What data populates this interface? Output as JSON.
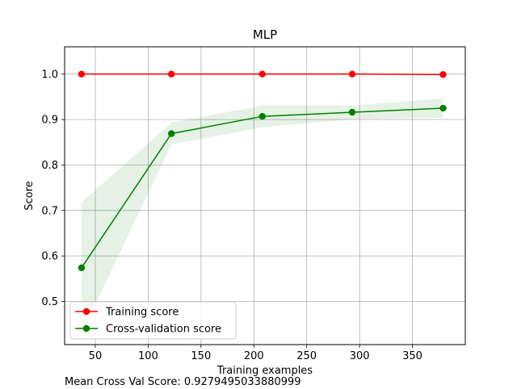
{
  "chart_data": {
    "type": "line",
    "title": "MLP",
    "xlabel": "Training examples",
    "ylabel": "Score",
    "xlim": [
      21,
      400
    ],
    "ylim": [
      0.405,
      1.06
    ],
    "xticks": [
      50,
      100,
      150,
      200,
      250,
      300,
      350
    ],
    "yticks": [
      0.5,
      0.6,
      0.7,
      0.8,
      0.9,
      1.0
    ],
    "grid": true,
    "legend_position": "lower-left",
    "x": [
      37,
      122,
      208,
      293,
      379
    ],
    "series": [
      {
        "name": "Training score",
        "color": "#ff0000",
        "marker": "circle",
        "values": [
          1.0,
          1.0,
          1.0,
          1.0,
          0.999
        ],
        "band_lower": [
          1.0,
          1.0,
          1.0,
          1.0,
          0.998
        ],
        "band_upper": [
          1.0,
          1.0,
          1.0,
          1.0,
          1.0
        ],
        "band_color": "#ff0000"
      },
      {
        "name": "Cross-validation score",
        "color": "#008000",
        "marker": "circle",
        "values": [
          0.574,
          0.869,
          0.907,
          0.916,
          0.925
        ],
        "band_lower": [
          0.43,
          0.845,
          0.883,
          0.901,
          0.904
        ],
        "band_upper": [
          0.718,
          0.893,
          0.931,
          0.931,
          0.946
        ],
        "band_color": "#008000"
      }
    ]
  },
  "footnote": "Mean Cross Val Score: 0.9279495033880999"
}
